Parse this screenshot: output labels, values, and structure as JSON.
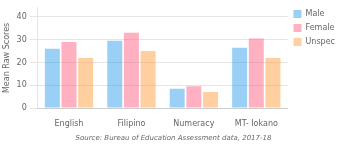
{
  "chart_data": {
    "type": "bar",
    "categories": [
      "English",
      "Filipino",
      "Numeracy",
      "MT- Iokano"
    ],
    "series": [
      {
        "name": "Male",
        "values": [
          26,
          29.5,
          8.5,
          26.5
        ]
      },
      {
        "name": "Female",
        "values": [
          29,
          33,
          9.5,
          30.5
        ]
      },
      {
        "name": "Unspec",
        "values": [
          22,
          25,
          7,
          22
        ]
      }
    ],
    "ylabel": "Mean Raw Scores",
    "annotations": [
      "Source: Bureau of Education Assessment data, 2017-18"
    ],
    "ylim": [
      0,
      44
    ],
    "yticks": [
      0,
      10,
      20,
      30,
      40
    ],
    "grid": true,
    "legend": "right"
  }
}
